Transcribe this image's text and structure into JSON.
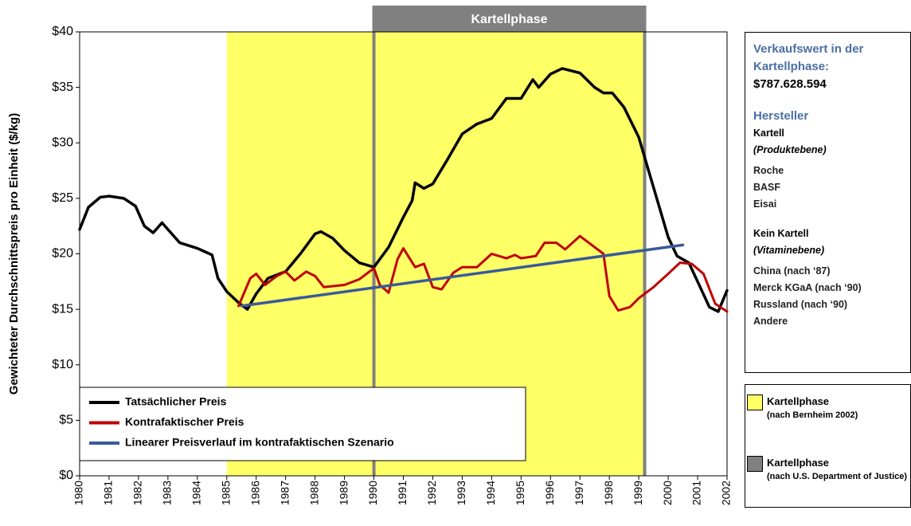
{
  "chart_data": {
    "type": "line",
    "y_label": "Gewichteter Durchschnittspreis pro Einheit ($/kg)",
    "xlim": [
      1980,
      2002
    ],
    "xticks": [
      1980,
      1981,
      1982,
      1983,
      1984,
      1985,
      1986,
      1987,
      1988,
      1989,
      1990,
      1991,
      1992,
      1993,
      1994,
      1995,
      1996,
      1997,
      1998,
      1999,
      2000,
      2001,
      2002
    ],
    "ylim": [
      0,
      40
    ],
    "yticks": [
      {
        "value": 0,
        "label": "$0"
      },
      {
        "value": 5,
        "label": "$5"
      },
      {
        "value": 10,
        "label": "$10"
      },
      {
        "value": 15,
        "label": "$15"
      },
      {
        "value": 20,
        "label": "$20"
      },
      {
        "value": 25,
        "label": "$25"
      },
      {
        "value": 30,
        "label": "$30"
      },
      {
        "value": 35,
        "label": "$35"
      },
      {
        "value": 40,
        "label": "$40"
      }
    ],
    "grid": false,
    "legend": "lower left",
    "bands": [
      {
        "label": "Kartellphase",
        "note": "(nach Bernheim 2002)",
        "start": 1985,
        "end": 1999.2,
        "color": "#ffff66"
      },
      {
        "label": "Kartellphase",
        "note": "(nach U.S. Department of Justice)",
        "start": 1990,
        "end": 1999.2,
        "color": "#808080"
      }
    ],
    "series": [
      {
        "name": "Tatsächlicher Preis",
        "color": "#000000",
        "x": [
          1980,
          1980.3,
          1980.7,
          1981,
          1981.5,
          1981.9,
          1982.2,
          1982.5,
          1982.8,
          1983,
          1983.4,
          1984,
          1984.5,
          1984.7,
          1985,
          1985.4,
          1985.7,
          1986,
          1986.4,
          1987,
          1987.5,
          1988,
          1988.2,
          1988.6,
          1989,
          1989.5,
          1990,
          1990.5,
          1991,
          1991.3,
          1991.4,
          1991.7,
          1992,
          1992.5,
          1993,
          1993.5,
          1994,
          1994.5,
          1995,
          1995.4,
          1995.6,
          1996,
          1996.4,
          1997,
          1997.5,
          1997.8,
          1998.1,
          1998.5,
          1999,
          1999.5,
          2000,
          2000.3,
          2000.7,
          2001,
          2001.4,
          2001.7,
          2002
        ],
        "values": [
          22.2,
          24.2,
          25.1,
          25.2,
          25.0,
          24.3,
          22.5,
          21.9,
          22.8,
          22.2,
          21.0,
          20.5,
          19.9,
          17.8,
          16.6,
          15.6,
          15.0,
          16.4,
          17.8,
          18.4,
          20.0,
          21.8,
          22.0,
          21.4,
          20.3,
          19.2,
          18.8,
          20.6,
          23.3,
          24.8,
          26.4,
          25.9,
          26.3,
          28.5,
          30.8,
          31.7,
          32.2,
          34.0,
          34.0,
          35.7,
          35.0,
          36.2,
          36.7,
          36.3,
          35.0,
          34.5,
          34.5,
          33.2,
          30.5,
          26.0,
          21.5,
          19.8,
          19.2,
          17.5,
          15.2,
          14.8,
          16.7
        ]
      },
      {
        "name": "Kontrafaktischer Preis",
        "color": "#c00000",
        "x": [
          1985.4,
          1985.8,
          1986,
          1986.3,
          1986.7,
          1987,
          1987.3,
          1987.7,
          1988,
          1988.3,
          1989,
          1989.5,
          1990,
          1990.2,
          1990.5,
          1990.8,
          1991,
          1991.4,
          1991.7,
          1992,
          1992.3,
          1992.7,
          1993,
          1993.5,
          1994,
          1994.5,
          1994.8,
          1995,
          1995.5,
          1995.8,
          1996.2,
          1996.5,
          1997,
          1997.4,
          1997.8,
          1998,
          1998.3,
          1998.7,
          1999,
          1999.5,
          2000,
          2000.4,
          2000.8,
          2001.2,
          2001.6,
          2002
        ],
        "values": [
          15.3,
          17.8,
          18.2,
          17.2,
          18.0,
          18.4,
          17.6,
          18.4,
          18.0,
          17.0,
          17.2,
          17.7,
          18.7,
          17.2,
          16.5,
          19.5,
          20.5,
          18.8,
          19.1,
          17.0,
          16.8,
          18.3,
          18.8,
          18.8,
          20.0,
          19.6,
          19.9,
          19.6,
          19.8,
          21.0,
          21.0,
          20.4,
          21.6,
          20.8,
          20.0,
          16.2,
          14.9,
          15.2,
          16.0,
          17.0,
          18.2,
          19.2,
          19.1,
          18.2,
          15.5,
          14.8
        ]
      },
      {
        "name": "Linearer Preisverlauf im kontrafaktischen Szenario",
        "color": "#3a5a9a",
        "x": [
          1985.5,
          2000.5
        ],
        "values": [
          15.3,
          20.8
        ]
      }
    ],
    "info": {
      "title": "Verkaufswert in der Kartellphase:",
      "value": "$787.628.594",
      "heading": "Hersteller",
      "groups": [
        {
          "name": "Kartell",
          "subtitle": "(Produktebene)",
          "members": [
            "Roche",
            "BASF",
            "Eisai"
          ]
        },
        {
          "name": "Kein Kartell",
          "subtitle": "(Vitaminebene)",
          "members": [
            "China (nach ‘87)",
            "Merck KGaA (nach ‘90)",
            "Russland (nach ‘90)",
            "Andere"
          ]
        }
      ]
    }
  }
}
